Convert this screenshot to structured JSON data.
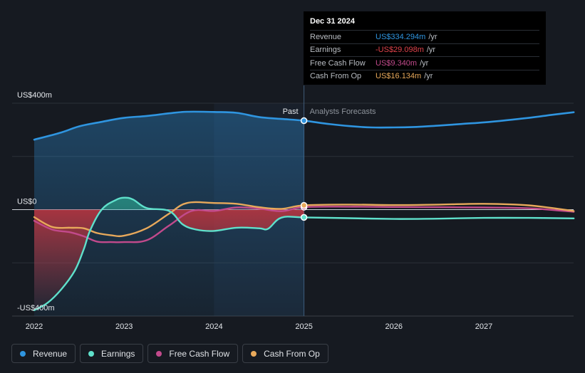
{
  "chart_data": {
    "type": "line",
    "y_unit_prefix": "US$",
    "y_unit_suffix": "m",
    "ylim": [
      -400,
      400
    ],
    "y_tick_labels": [
      {
        "value": 400,
        "label": "US$400m"
      },
      {
        "value": 0,
        "label": "US$0"
      },
      {
        "value": -400,
        "label": "-US$400m"
      }
    ],
    "xlim": [
      2021.98,
      2028.0
    ],
    "x_tick_labels": [
      "2022",
      "2023",
      "2024",
      "2025",
      "2026",
      "2027"
    ],
    "x_ticks": [
      2022,
      2023,
      2024,
      2025,
      2026,
      2027
    ],
    "divider_x": 2025.0,
    "past_label": "Past",
    "forecast_label": "Analysts Forecasts",
    "series": [
      {
        "name": "Revenue",
        "color": "#2f95e0",
        "points": [
          [
            2022.0,
            263
          ],
          [
            2022.3,
            290
          ],
          [
            2022.5,
            313
          ],
          [
            2022.75,
            330
          ],
          [
            2023.0,
            345
          ],
          [
            2023.25,
            352
          ],
          [
            2023.5,
            362
          ],
          [
            2023.7,
            368
          ],
          [
            2024.0,
            367
          ],
          [
            2024.25,
            364
          ],
          [
            2024.5,
            348
          ],
          [
            2024.75,
            341
          ],
          [
            2025.0,
            334.294
          ],
          [
            2025.25,
            323
          ],
          [
            2025.5,
            314
          ],
          [
            2025.75,
            309
          ],
          [
            2026.0,
            309
          ],
          [
            2026.25,
            311
          ],
          [
            2026.5,
            316
          ],
          [
            2026.75,
            322
          ],
          [
            2027.0,
            328
          ],
          [
            2027.25,
            336
          ],
          [
            2027.5,
            345
          ],
          [
            2027.75,
            356
          ],
          [
            2028.0,
            366
          ]
        ]
      },
      {
        "name": "Earnings",
        "color": "#5fe0cb",
        "points": [
          [
            2022.0,
            -378
          ],
          [
            2022.15,
            -350
          ],
          [
            2022.3,
            -300
          ],
          [
            2022.45,
            -230
          ],
          [
            2022.55,
            -150
          ],
          [
            2022.62,
            -80
          ],
          [
            2022.75,
            0
          ],
          [
            2022.9,
            35
          ],
          [
            2023.0,
            45
          ],
          [
            2023.1,
            38
          ],
          [
            2023.25,
            6
          ],
          [
            2023.5,
            -5
          ],
          [
            2023.65,
            -55
          ],
          [
            2023.8,
            -75
          ],
          [
            2024.0,
            -80
          ],
          [
            2024.25,
            -68
          ],
          [
            2024.5,
            -70
          ],
          [
            2024.6,
            -72
          ],
          [
            2024.75,
            -30
          ],
          [
            2025.0,
            -29.098
          ],
          [
            2025.5,
            -32
          ],
          [
            2026.0,
            -35
          ],
          [
            2026.5,
            -34
          ],
          [
            2027.0,
            -31
          ],
          [
            2027.5,
            -31
          ],
          [
            2028.0,
            -33
          ]
        ]
      },
      {
        "name": "Free Cash Flow",
        "color": "#c24a8c",
        "points": [
          [
            2022.0,
            -42
          ],
          [
            2022.2,
            -75
          ],
          [
            2022.4,
            -85
          ],
          [
            2022.55,
            -100
          ],
          [
            2022.7,
            -120
          ],
          [
            2022.85,
            -122
          ],
          [
            2023.0,
            -122
          ],
          [
            2023.25,
            -115
          ],
          [
            2023.5,
            -60
          ],
          [
            2023.75,
            -5
          ],
          [
            2024.0,
            -5
          ],
          [
            2024.25,
            8
          ],
          [
            2024.5,
            4
          ],
          [
            2024.75,
            -6
          ],
          [
            2025.0,
            9.34
          ],
          [
            2025.5,
            11
          ],
          [
            2026.0,
            10
          ],
          [
            2026.5,
            9
          ],
          [
            2027.0,
            8
          ],
          [
            2027.5,
            5
          ],
          [
            2028.0,
            -8
          ]
        ]
      },
      {
        "name": "Cash From Op",
        "color": "#e8a95b",
        "points": [
          [
            2022.0,
            -28
          ],
          [
            2022.2,
            -65
          ],
          [
            2022.4,
            -68
          ],
          [
            2022.55,
            -70
          ],
          [
            2022.7,
            -88
          ],
          [
            2022.85,
            -96
          ],
          [
            2023.0,
            -98
          ],
          [
            2023.25,
            -70
          ],
          [
            2023.5,
            -15
          ],
          [
            2023.7,
            25
          ],
          [
            2024.0,
            25
          ],
          [
            2024.25,
            22
          ],
          [
            2024.5,
            9
          ],
          [
            2024.75,
            3
          ],
          [
            2025.0,
            16.134
          ],
          [
            2025.5,
            19
          ],
          [
            2026.0,
            17
          ],
          [
            2026.5,
            19
          ],
          [
            2027.0,
            22
          ],
          [
            2027.5,
            16
          ],
          [
            2028.0,
            -5
          ]
        ]
      }
    ],
    "highlight": {
      "x": 2025.0,
      "date": "Dec 31 2024",
      "rows": [
        {
          "label": "Revenue",
          "value": "US$334.294m",
          "unit": "/yr",
          "color": "#2f95e0"
        },
        {
          "label": "Earnings",
          "value": "-US$29.098m",
          "unit": "/yr",
          "color": "#e0434b"
        },
        {
          "label": "Free Cash Flow",
          "value": "US$9.340m",
          "unit": "/yr",
          "color": "#c24a8c"
        },
        {
          "label": "Cash From Op",
          "value": "US$16.134m",
          "unit": "/yr",
          "color": "#e8a95b"
        }
      ]
    }
  },
  "legend": [
    {
      "label": "Revenue",
      "color": "#2f95e0"
    },
    {
      "label": "Earnings",
      "color": "#5fe0cb"
    },
    {
      "label": "Free Cash Flow",
      "color": "#c24a8c"
    },
    {
      "label": "Cash From Op",
      "color": "#e8a95b"
    }
  ]
}
